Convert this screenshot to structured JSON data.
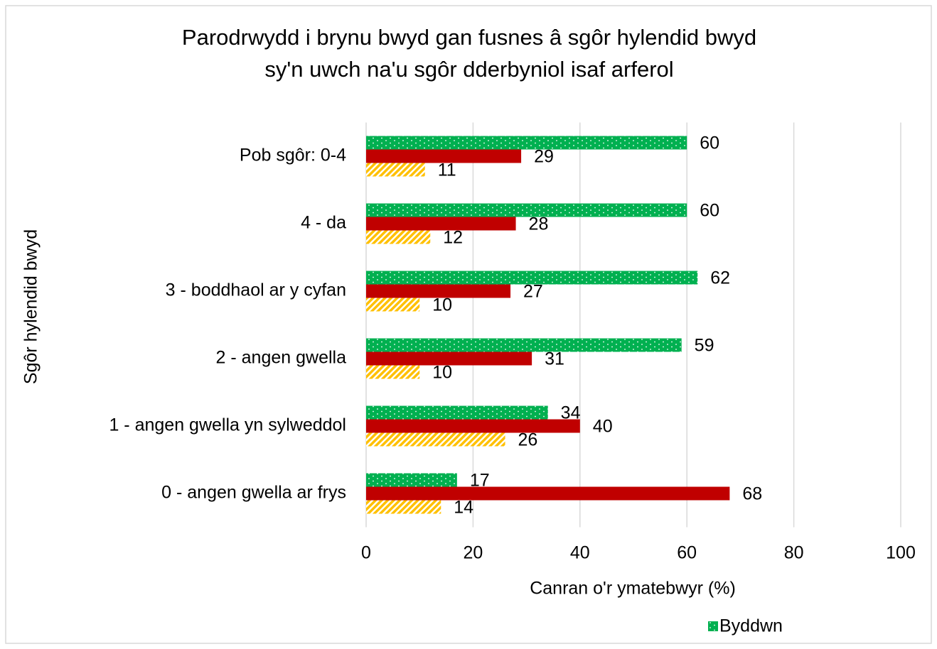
{
  "chart_data": {
    "type": "hbar",
    "title": [
      "Parodrwydd i brynu bwyd gan fusnes â sgôr hylendid bwyd",
      "sy'n uwch na'u sgôr dderbyniol isaf arferol"
    ],
    "xlabel": "Canran o'r ymatebwyr (%)",
    "ylabel": "Sgôr hylendid bwyd",
    "categories": [
      "Pob sgôr: 0-4",
      "4 - da",
      "3 - boddhaol ar y cyfan",
      "2 - angen gwella",
      "1 - angen gwella yn sylweddol",
      "0 - angen gwella ar frys"
    ],
    "series": [
      {
        "name": "Byddwn",
        "color": "#00b050",
        "pattern": "dots",
        "values": [
          60,
          60,
          62,
          59,
          34,
          17
        ]
      },
      {
        "color": "#c00000",
        "pattern": "solid",
        "values": [
          29,
          28,
          27,
          31,
          40,
          68
        ]
      },
      {
        "color": "#ffc000",
        "pattern": "hatch",
        "values": [
          11,
          12,
          10,
          10,
          26,
          14
        ]
      }
    ],
    "xlim": [
      0,
      100
    ],
    "xticks": [
      0,
      20,
      40,
      60,
      80,
      100
    ],
    "grid": true,
    "legend": "bottom"
  }
}
